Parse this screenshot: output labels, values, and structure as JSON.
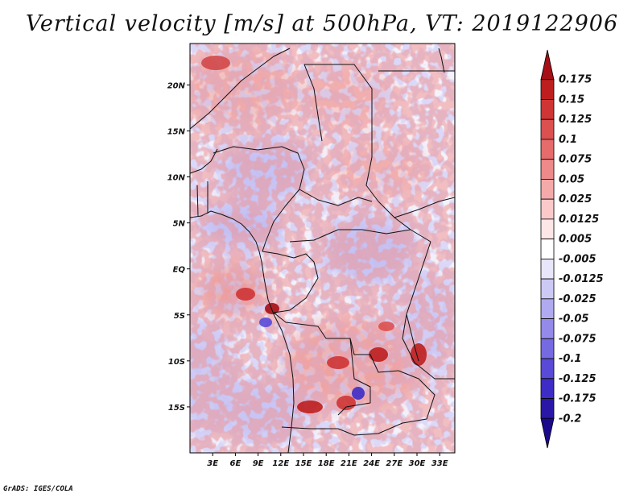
{
  "title": "Vertical velocity [m/s] at 500hPa, VT: 2019122906",
  "credit": "GrADS: IGES/COLA",
  "map": {
    "variable": "Vertical velocity",
    "level": "500hPa",
    "valid_time": "2019122906",
    "lon_range": [
      0,
      35
    ],
    "lat_range": [
      -20,
      24.5
    ],
    "lon_ticks": [
      {
        "value": 3,
        "label": "3E"
      },
      {
        "value": 6,
        "label": "6E"
      },
      {
        "value": 9,
        "label": "9E"
      },
      {
        "value": 12,
        "label": "12E"
      },
      {
        "value": 15,
        "label": "15E"
      },
      {
        "value": 18,
        "label": "18E"
      },
      {
        "value": 21,
        "label": "21E"
      },
      {
        "value": 24,
        "label": "24E"
      },
      {
        "value": 27,
        "label": "27E"
      },
      {
        "value": 30,
        "label": "30E"
      },
      {
        "value": 33,
        "label": "33E"
      }
    ],
    "lat_ticks": [
      {
        "value": 20,
        "label": "20N"
      },
      {
        "value": 15,
        "label": "15N"
      },
      {
        "value": 10,
        "label": "10N"
      },
      {
        "value": 5,
        "label": "5N"
      },
      {
        "value": 0,
        "label": "EQ"
      },
      {
        "value": -5,
        "label": "5S"
      },
      {
        "value": -10,
        "label": "10S"
      },
      {
        "value": -15,
        "label": "15S"
      }
    ]
  },
  "colorbar": {
    "labels": [
      "0.175",
      "0.15",
      "0.125",
      "0.1",
      "0.075",
      "0.05",
      "0.025",
      "0.0125",
      "0.005",
      "-0.005",
      "-0.0125",
      "-0.025",
      "-0.05",
      "-0.075",
      "-0.1",
      "-0.125",
      "-0.175",
      "-0.2"
    ],
    "colors": [
      "#a50f15",
      "#be1e1e",
      "#cf3535",
      "#dc5050",
      "#e66b6b",
      "#ee8a8a",
      "#f5aaaa",
      "#fbc9c9",
      "#fde6e6",
      "#ffffff",
      "#e8e6fb",
      "#cdc9f5",
      "#b0aaf0",
      "#938aea",
      "#766ae3",
      "#5a4ad8",
      "#3e2cc6",
      "#2a17a8",
      "#1c0a8c"
    ]
  }
}
